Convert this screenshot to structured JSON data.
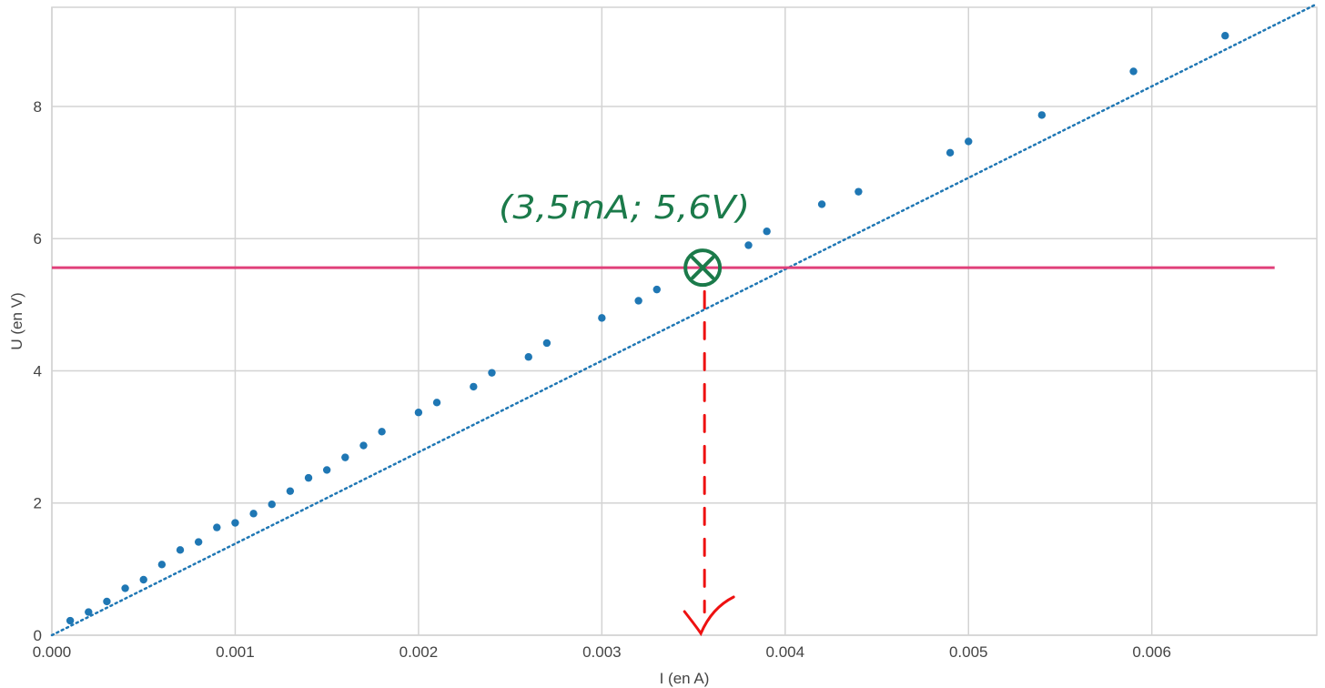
{
  "chart_data": {
    "type": "scatter",
    "title": "",
    "xlabel": "I (en A)",
    "ylabel": "U (en V)",
    "xlim": [
      0,
      0.0069
    ],
    "ylim": [
      0,
      9.5
    ],
    "grid": true,
    "x_ticks": [
      0,
      0.001,
      0.002,
      0.003,
      0.004,
      0.005,
      0.006
    ],
    "x_tick_labels": [
      "0.000",
      "0.001",
      "0.002",
      "0.003",
      "0.004",
      "0.005",
      "0.006"
    ],
    "y_ticks": [
      0,
      2,
      4,
      6,
      8
    ],
    "y_tick_labels": [
      "0",
      "2",
      "4",
      "6",
      "8"
    ],
    "series": [
      {
        "marker": "dot",
        "color": "#1f77b4",
        "points": [
          [
            0.0001,
            0.22
          ],
          [
            0.0002,
            0.35
          ],
          [
            0.0003,
            0.51
          ],
          [
            0.0004,
            0.71
          ],
          [
            0.0005,
            0.84
          ],
          [
            0.0006,
            1.07
          ],
          [
            0.0007,
            1.29
          ],
          [
            0.0008,
            1.41
          ],
          [
            0.0009,
            1.63
          ],
          [
            0.001,
            1.7
          ],
          [
            0.0011,
            1.84
          ],
          [
            0.0012,
            1.98
          ],
          [
            0.0013,
            2.18
          ],
          [
            0.0014,
            2.38
          ],
          [
            0.0015,
            2.5
          ],
          [
            0.0016,
            2.69
          ],
          [
            0.0017,
            2.87
          ],
          [
            0.0018,
            3.08
          ],
          [
            0.002,
            3.37
          ],
          [
            0.0021,
            3.52
          ],
          [
            0.0023,
            3.76
          ],
          [
            0.0024,
            3.97
          ],
          [
            0.0026,
            4.21
          ],
          [
            0.0027,
            4.42
          ],
          [
            0.003,
            4.8
          ],
          [
            0.0032,
            5.06
          ],
          [
            0.0033,
            5.23
          ],
          [
            0.0038,
            5.9
          ],
          [
            0.0039,
            6.11
          ],
          [
            0.0042,
            6.52
          ],
          [
            0.0044,
            6.71
          ],
          [
            0.0049,
            7.3
          ],
          [
            0.005,
            7.47
          ],
          [
            0.0054,
            7.87
          ],
          [
            0.0059,
            8.53
          ],
          [
            0.0064,
            9.07
          ]
        ]
      }
    ],
    "trendline": {
      "style": "dotted",
      "color": "#1f77b4",
      "x": [
        0,
        0.0069
      ],
      "y": [
        0,
        9.55
      ]
    },
    "horizontal_line": {
      "y": 5.56,
      "x_range": [
        0,
        0.00667
      ],
      "color": "#e0407a"
    },
    "marked_point": {
      "x": 0.00355,
      "y": 5.56,
      "color": "#1b7a4a"
    },
    "drop_line": {
      "x": 0.00356,
      "y_range": [
        0.35,
        5.2
      ],
      "color": "#ee1111"
    },
    "annotation_text": "(3,5mA; 5,6V)"
  }
}
